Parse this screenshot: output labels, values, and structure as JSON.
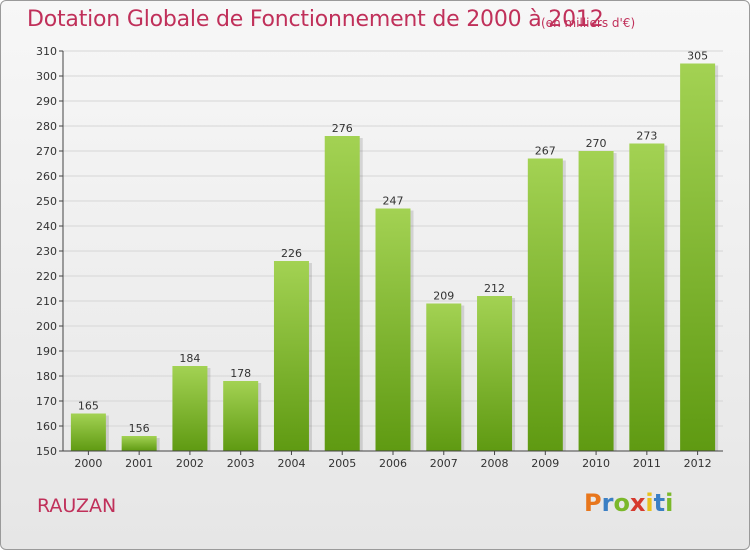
{
  "title": "Dotation Globale de Fonctionnement de 2000 à 2012",
  "subtitle": "(en milliers d'€)",
  "commune": "RAUZAN",
  "brand": {
    "letters": [
      "P",
      "r",
      "o",
      "x",
      "i",
      "t",
      "i"
    ],
    "colors": [
      "#e8761c",
      "#3a7fc4",
      "#7bb82a",
      "#d63a2e",
      "#e8c21c",
      "#3a7fc4",
      "#7bb82a"
    ]
  },
  "colors": {
    "title": "#c0305a",
    "bar_light": "#a3d253",
    "bar_dark": "#5f9a12",
    "grid": "#d6d6d6",
    "axis": "#444444"
  },
  "chart_data": {
    "type": "bar",
    "categories": [
      "2000",
      "2001",
      "2002",
      "2003",
      "2004",
      "2005",
      "2006",
      "2007",
      "2008",
      "2009",
      "2010",
      "2011",
      "2012"
    ],
    "values": [
      165,
      156,
      184,
      178,
      226,
      276,
      247,
      209,
      212,
      267,
      270,
      273,
      305
    ],
    "ylim": [
      150,
      310
    ],
    "yticks": [
      150,
      160,
      170,
      180,
      190,
      200,
      210,
      220,
      230,
      240,
      250,
      260,
      270,
      280,
      290,
      300,
      310
    ],
    "grid": true,
    "data_labels": true
  }
}
